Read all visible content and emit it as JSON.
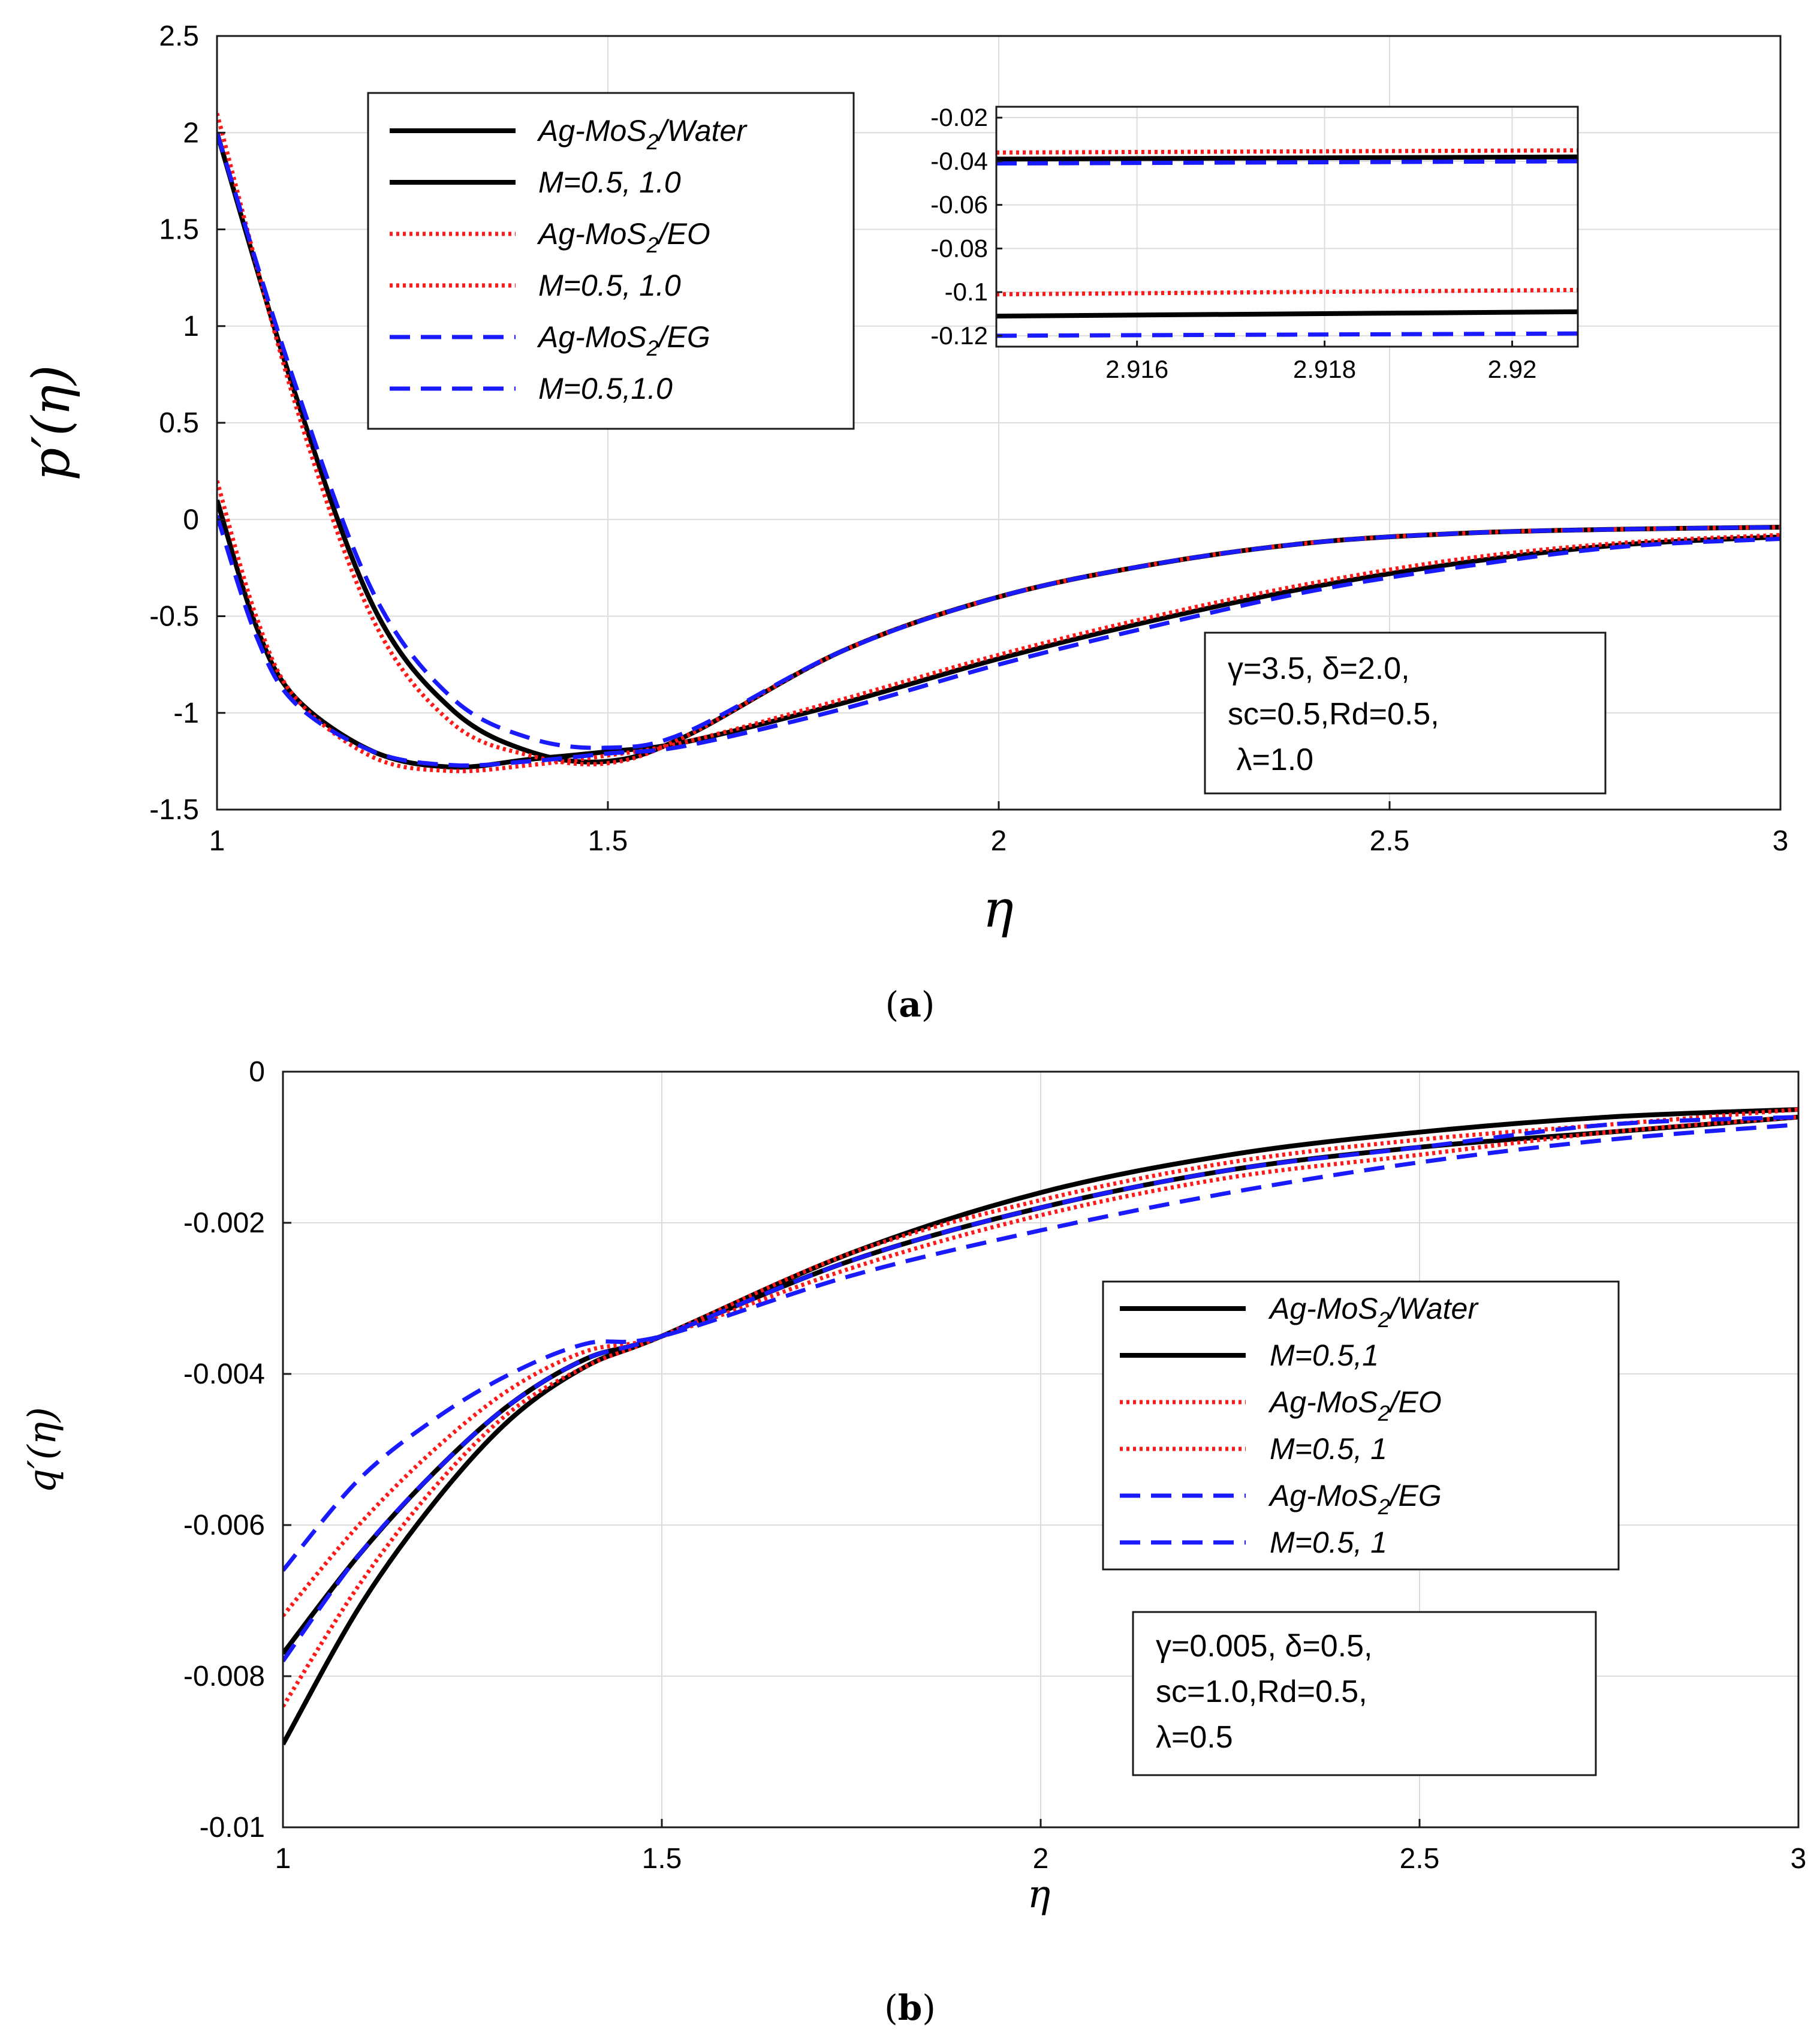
{
  "colors": {
    "water": "#000000",
    "eo": "#ff1a1a",
    "eg": "#1a1aff"
  },
  "chart_data": [
    {
      "type": "line",
      "panel_label_open": "(",
      "panel_label": "a",
      "panel_label_close": ")",
      "xlabel": "η",
      "ylabel": "p′(η)",
      "xlim": [
        1,
        3
      ],
      "ylim": [
        -1.5,
        2.5
      ],
      "xticks": [
        "1",
        "1.5",
        "2",
        "2.5",
        "3"
      ],
      "yticks": [
        "2.5",
        "2",
        "1.5",
        "1",
        "0.5",
        "0",
        "-0.5",
        "-1",
        "-1.5"
      ],
      "grid": true,
      "legend_position": "top-left",
      "legend": [
        {
          "prefix": "Ag-MoS",
          "sub": "2",
          "suffix": "/Water",
          "style": "solid",
          "color_key": "water"
        },
        {
          "prefix": "M=0.5, 1.0",
          "sub": "",
          "suffix": "",
          "style": "solid",
          "color_key": "water"
        },
        {
          "prefix": "Ag-MoS",
          "sub": "2",
          "suffix": "/EO",
          "style": "dotted",
          "color_key": "eo"
        },
        {
          "prefix": "M=0.5, 1.0",
          "sub": "",
          "suffix": "",
          "style": "dotted",
          "color_key": "eo"
        },
        {
          "prefix": "Ag-MoS",
          "sub": "2",
          "suffix": "/EG",
          "style": "dashed",
          "color_key": "eg"
        },
        {
          "prefix": "M=0.5,1.0",
          "sub": "",
          "suffix": "",
          "style": "dashed",
          "color_key": "eg"
        }
      ],
      "params": [
        "γ=3.5, δ=2.0,",
        "sc=0.5,Rd=0.5,",
        " λ=1.0"
      ],
      "series": [
        {
          "name": "Ag-MoS2/Water, M=0.5",
          "color_key": "water",
          "style": "solid",
          "x": [
            1.0,
            1.1,
            1.2,
            1.3,
            1.4,
            1.5,
            1.6,
            1.8,
            2.0,
            2.2,
            2.4,
            2.6,
            2.8,
            3.0
          ],
          "y": [
            2.0,
            0.65,
            -0.45,
            -0.98,
            -1.2,
            -1.25,
            -1.12,
            -0.68,
            -0.4,
            -0.23,
            -0.12,
            -0.07,
            -0.05,
            -0.04
          ]
        },
        {
          "name": "Ag-MoS2/Water, M=1.0",
          "color_key": "water",
          "style": "solid",
          "x": [
            1.0,
            1.05,
            1.1,
            1.2,
            1.3,
            1.4,
            1.5,
            1.6,
            1.8,
            2.0,
            2.2,
            2.4,
            2.6,
            2.8,
            3.0
          ],
          "y": [
            0.1,
            -0.55,
            -0.92,
            -1.2,
            -1.28,
            -1.24,
            -1.2,
            -1.15,
            -0.95,
            -0.72,
            -0.52,
            -0.35,
            -0.22,
            -0.13,
            -0.09
          ]
        },
        {
          "name": "Ag-MoS2/EO, M=0.5",
          "color_key": "eo",
          "style": "dotted",
          "x": [
            1.0,
            1.1,
            1.2,
            1.3,
            1.4,
            1.5,
            1.6,
            1.8,
            2.0,
            2.2,
            2.4,
            2.6,
            2.8,
            3.0
          ],
          "y": [
            2.1,
            0.6,
            -0.52,
            -1.05,
            -1.22,
            -1.26,
            -1.12,
            -0.68,
            -0.4,
            -0.23,
            -0.12,
            -0.07,
            -0.05,
            -0.04
          ]
        },
        {
          "name": "Ag-MoS2/EO, M=1.0",
          "color_key": "eo",
          "style": "dotted",
          "x": [
            1.0,
            1.05,
            1.1,
            1.2,
            1.3,
            1.4,
            1.5,
            1.6,
            1.8,
            2.0,
            2.2,
            2.4,
            2.6,
            2.8,
            3.0
          ],
          "y": [
            0.2,
            -0.5,
            -0.92,
            -1.23,
            -1.3,
            -1.27,
            -1.22,
            -1.15,
            -0.93,
            -0.7,
            -0.5,
            -0.33,
            -0.2,
            -0.12,
            -0.08
          ]
        },
        {
          "name": "Ag-MoS2/EG, M=0.5",
          "color_key": "eg",
          "style": "dashed",
          "x": [
            1.0,
            1.1,
            1.2,
            1.3,
            1.4,
            1.5,
            1.6,
            1.8,
            2.0,
            2.2,
            2.4,
            2.6,
            2.8,
            3.0
          ],
          "y": [
            2.0,
            0.7,
            -0.38,
            -0.92,
            -1.13,
            -1.18,
            -1.1,
            -0.68,
            -0.4,
            -0.23,
            -0.12,
            -0.07,
            -0.05,
            -0.04
          ]
        },
        {
          "name": "Ag-MoS2/EG, M=1.0",
          "color_key": "eg",
          "style": "dashed",
          "x": [
            1.0,
            1.05,
            1.1,
            1.2,
            1.3,
            1.4,
            1.5,
            1.6,
            1.8,
            2.0,
            2.2,
            2.4,
            2.6,
            2.8,
            3.0
          ],
          "y": [
            0.02,
            -0.6,
            -0.95,
            -1.2,
            -1.27,
            -1.25,
            -1.21,
            -1.17,
            -0.98,
            -0.75,
            -0.55,
            -0.37,
            -0.24,
            -0.14,
            -0.1
          ]
        }
      ],
      "inset": {
        "xlim": [
          2.9145,
          2.9207
        ],
        "ylim": [
          -0.125,
          -0.015
        ],
        "xticks": [
          "2.916",
          "2.918",
          "2.92"
        ],
        "yticks": [
          "-0.02",
          "-0.04",
          "-0.06",
          "-0.08",
          "-0.1",
          "-0.12"
        ],
        "series": [
          {
            "name": "Water, M=0.5",
            "color_key": "water",
            "style": "solid",
            "x": [
              2.9145,
              2.9207
            ],
            "y": [
              -0.039,
              -0.038
            ]
          },
          {
            "name": "EO, M=0.5",
            "color_key": "eo",
            "style": "dotted",
            "x": [
              2.9145,
              2.9207
            ],
            "y": [
              -0.036,
              -0.035
            ]
          },
          {
            "name": "EG, M=0.5",
            "color_key": "eg",
            "style": "dashed",
            "x": [
              2.9145,
              2.9207
            ],
            "y": [
              -0.041,
              -0.04
            ]
          },
          {
            "name": "Water, M=1.0",
            "color_key": "water",
            "style": "solid",
            "x": [
              2.9145,
              2.9207
            ],
            "y": [
              -0.111,
              -0.109
            ]
          },
          {
            "name": "EO, M=1.0",
            "color_key": "eo",
            "style": "dotted",
            "x": [
              2.9145,
              2.9207
            ],
            "y": [
              -0.101,
              -0.099
            ]
          },
          {
            "name": "EG, M=1.0",
            "color_key": "eg",
            "style": "dashed",
            "x": [
              2.9145,
              2.9207
            ],
            "y": [
              -0.12,
              -0.119
            ]
          }
        ]
      }
    },
    {
      "type": "line",
      "panel_label_open": "(",
      "panel_label": "b",
      "panel_label_close": ")",
      "xlabel": "η",
      "ylabel": "q′(η)",
      "xlim": [
        1,
        3
      ],
      "ylim": [
        -0.01,
        0
      ],
      "xticks": [
        "1",
        "1.5",
        "2",
        "2.5",
        "3"
      ],
      "yticks": [
        "0",
        "-0.002",
        "-0.004",
        "-0.006",
        "-0.008",
        "-0.01"
      ],
      "grid": true,
      "legend_position": "center-right",
      "legend": [
        {
          "prefix": "Ag-MoS",
          "sub": "2",
          "suffix": "/Water",
          "style": "solid",
          "color_key": "water"
        },
        {
          "prefix": "M=0.5,1",
          "sub": "",
          "suffix": "",
          "style": "solid",
          "color_key": "water"
        },
        {
          "prefix": "Ag-MoS",
          "sub": "2",
          "suffix": "/EO",
          "style": "dotted",
          "color_key": "eo"
        },
        {
          "prefix": "M=0.5, 1",
          "sub": "",
          "suffix": "",
          "style": "dotted",
          "color_key": "eo"
        },
        {
          "prefix": "Ag-MoS",
          "sub": "2",
          "suffix": "/EG",
          "style": "dashed",
          "color_key": "eg"
        },
        {
          "prefix": "M=0.5, 1",
          "sub": "",
          "suffix": "",
          "style": "dashed",
          "color_key": "eg"
        }
      ],
      "params": [
        "γ=0.005, δ=0.5,",
        "sc=1.0,Rd=0.5,",
        "λ=0.5"
      ],
      "series": [
        {
          "name": "Ag-MoS2/Water, M=0.5",
          "color_key": "water",
          "style": "solid",
          "x": [
            1.0,
            1.1,
            1.2,
            1.3,
            1.4,
            1.5,
            1.75,
            2.0,
            2.25,
            2.5,
            2.75,
            3.0
          ],
          "y": [
            -0.0089,
            -0.0071,
            -0.0057,
            -0.0046,
            -0.0039,
            -0.0035,
            -0.0024,
            -0.0016,
            -0.0011,
            -0.0008,
            -0.0006,
            -0.0005
          ]
        },
        {
          "name": "Ag-MoS2/Water, M=1",
          "color_key": "water",
          "style": "solid",
          "x": [
            1.0,
            1.1,
            1.2,
            1.3,
            1.4,
            1.5,
            1.75,
            2.0,
            2.25,
            2.5,
            2.75,
            3.0
          ],
          "y": [
            -0.0077,
            -0.0064,
            -0.0053,
            -0.0044,
            -0.0038,
            -0.0035,
            -0.0025,
            -0.0018,
            -0.0013,
            -0.001,
            -0.0008,
            -0.0006
          ]
        },
        {
          "name": "Ag-MoS2/EO, M=0.5",
          "color_key": "eo",
          "style": "dotted",
          "x": [
            1.0,
            1.1,
            1.2,
            1.3,
            1.4,
            1.5,
            1.75,
            2.0,
            2.25,
            2.5,
            2.75,
            3.0
          ],
          "y": [
            -0.0084,
            -0.0068,
            -0.0055,
            -0.0045,
            -0.0039,
            -0.0035,
            -0.0024,
            -0.0017,
            -0.0012,
            -0.0009,
            -0.0007,
            -0.0005
          ]
        },
        {
          "name": "Ag-MoS2/EO, M=1",
          "color_key": "eo",
          "style": "dotted",
          "x": [
            1.0,
            1.1,
            1.2,
            1.3,
            1.4,
            1.5,
            1.75,
            2.0,
            2.25,
            2.5,
            2.75,
            3.0
          ],
          "y": [
            -0.0072,
            -0.006,
            -0.005,
            -0.0042,
            -0.0037,
            -0.0035,
            -0.0026,
            -0.0019,
            -0.0014,
            -0.0011,
            -0.0008,
            -0.0006
          ]
        },
        {
          "name": "Ag-MoS2/EG, M=0.5",
          "color_key": "eg",
          "style": "dashed",
          "x": [
            1.0,
            1.1,
            1.2,
            1.3,
            1.4,
            1.5,
            1.75,
            2.0,
            2.25,
            2.5,
            2.75,
            3.0
          ],
          "y": [
            -0.0078,
            -0.0064,
            -0.0053,
            -0.0044,
            -0.0038,
            -0.0035,
            -0.0025,
            -0.0018,
            -0.0013,
            -0.001,
            -0.0007,
            -0.0006
          ]
        },
        {
          "name": "Ag-MoS2/EG, M=1",
          "color_key": "eg",
          "style": "dashed",
          "x": [
            1.0,
            1.1,
            1.2,
            1.3,
            1.4,
            1.5,
            1.75,
            2.0,
            2.25,
            2.5,
            2.75,
            3.0
          ],
          "y": [
            -0.0066,
            -0.0054,
            -0.0046,
            -0.004,
            -0.0036,
            -0.0035,
            -0.0027,
            -0.0021,
            -0.0016,
            -0.0012,
            -0.0009,
            -0.0007
          ]
        }
      ]
    }
  ]
}
